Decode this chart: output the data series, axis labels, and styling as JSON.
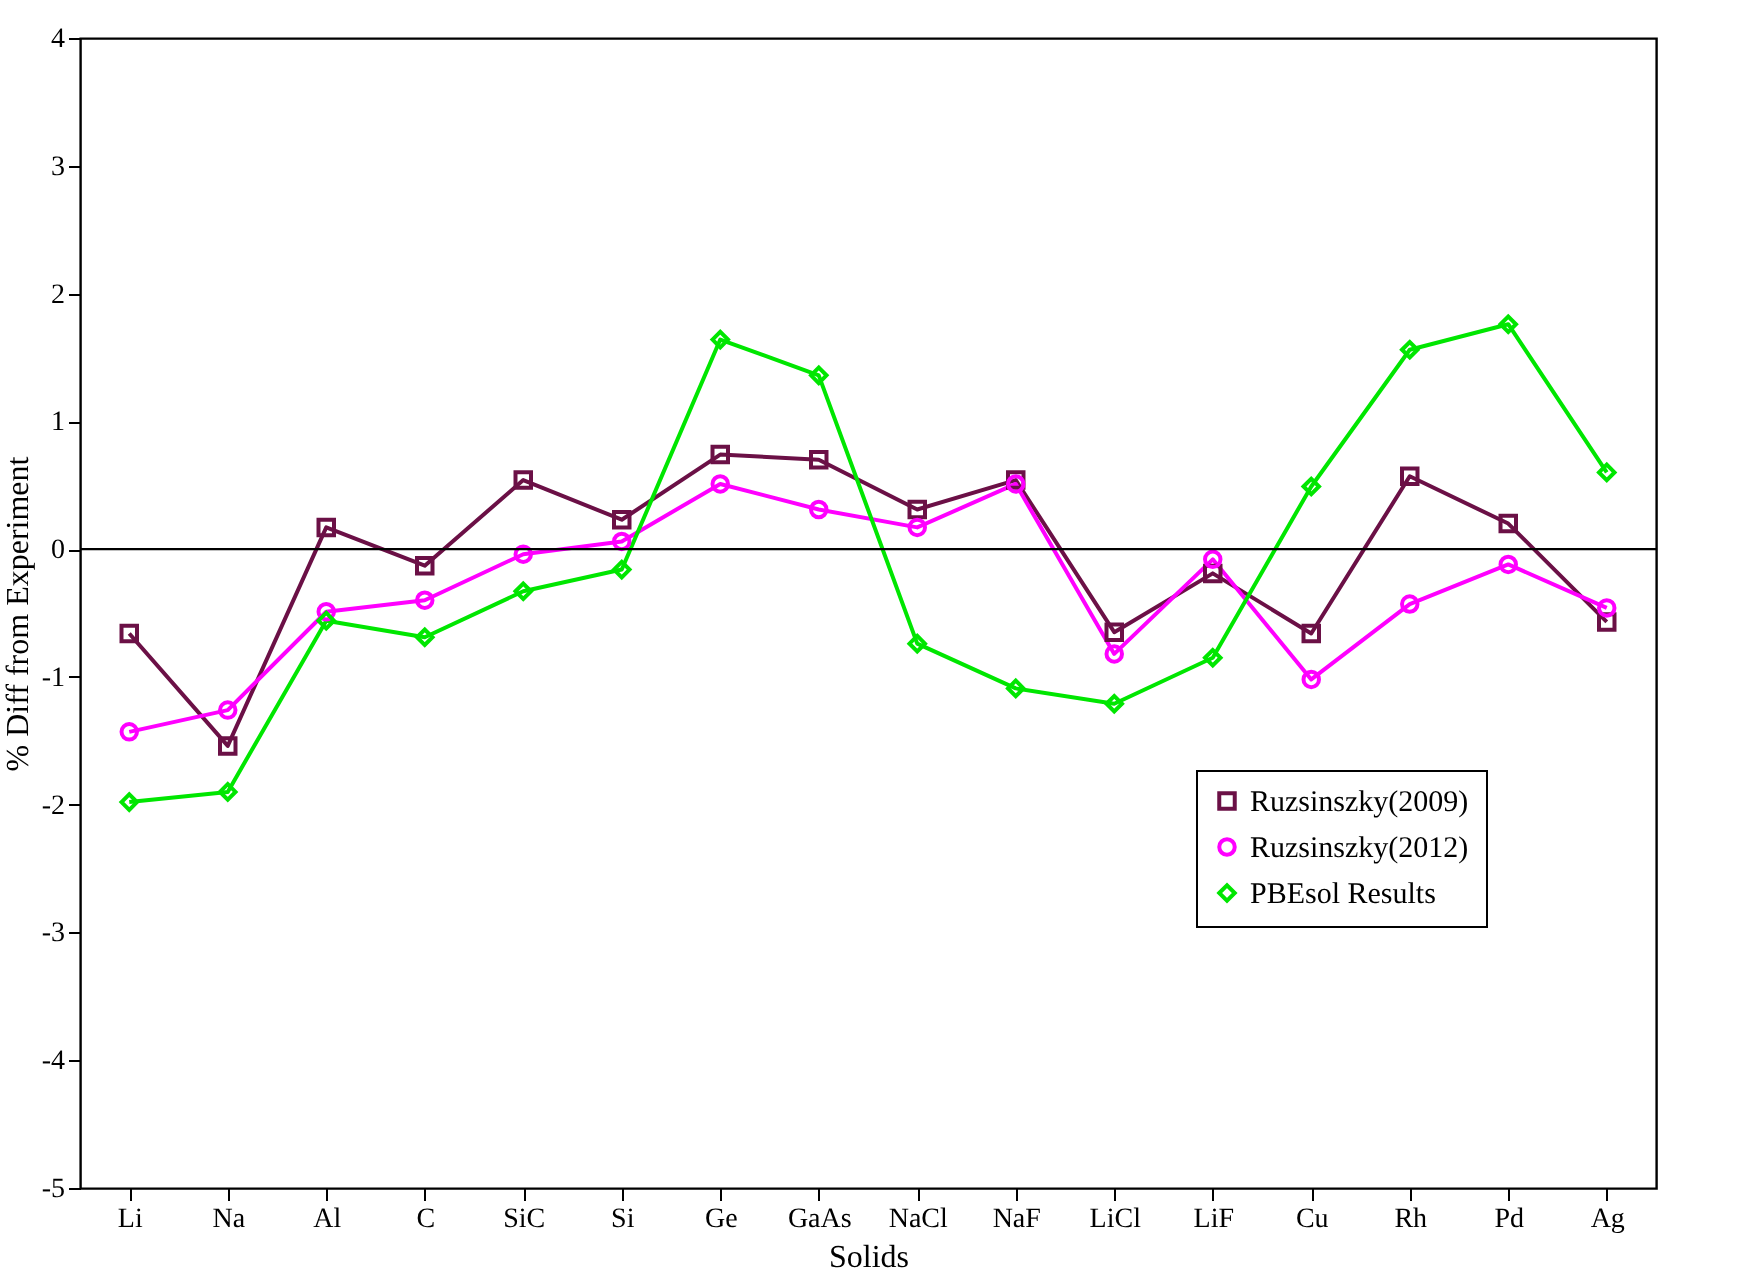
{
  "chart_data": {
    "type": "line",
    "xlabel": "Solids",
    "ylabel": "% Diff from Experiment",
    "categories": [
      "Li",
      "Na",
      "Al",
      "C",
      "SiC",
      "Si",
      "Ge",
      "GaAs",
      "NaCl",
      "NaF",
      "LiCl",
      "LiF",
      "Cu",
      "Rh",
      "Pd",
      "Ag"
    ],
    "ylim": [
      -5,
      4
    ],
    "yticks": [
      -5,
      -4,
      -3,
      -2,
      -1,
      0,
      1,
      2,
      3,
      4
    ],
    "grid": false,
    "legend": "right",
    "ref_lines": [
      {
        "axis": "y",
        "value": 0,
        "color": "#000000"
      }
    ],
    "series": [
      {
        "name": "Ruzsinszky(2009)",
        "color": "#6b1046",
        "marker": "square",
        "values": [
          -0.66,
          -1.54,
          0.17,
          -0.13,
          0.54,
          0.23,
          0.74,
          0.7,
          0.31,
          0.54,
          -0.65,
          -0.19,
          -0.66,
          0.57,
          0.2,
          -0.57
        ]
      },
      {
        "name": "Ruzsinszky(2012)",
        "color": "#ff00ff",
        "marker": "circle",
        "values": [
          -1.43,
          -1.26,
          -0.49,
          -0.4,
          -0.04,
          0.06,
          0.51,
          0.31,
          0.17,
          0.51,
          -0.82,
          -0.08,
          -1.02,
          -0.43,
          -0.12,
          -0.46
        ]
      },
      {
        "name": "PBEsol Results",
        "color": "#00e600",
        "marker": "diamond",
        "values": [
          -1.98,
          -1.9,
          -0.56,
          -0.69,
          -0.33,
          -0.16,
          1.64,
          1.36,
          -0.74,
          -1.09,
          -1.21,
          -0.85,
          0.49,
          1.56,
          1.76,
          0.6
        ]
      }
    ]
  }
}
